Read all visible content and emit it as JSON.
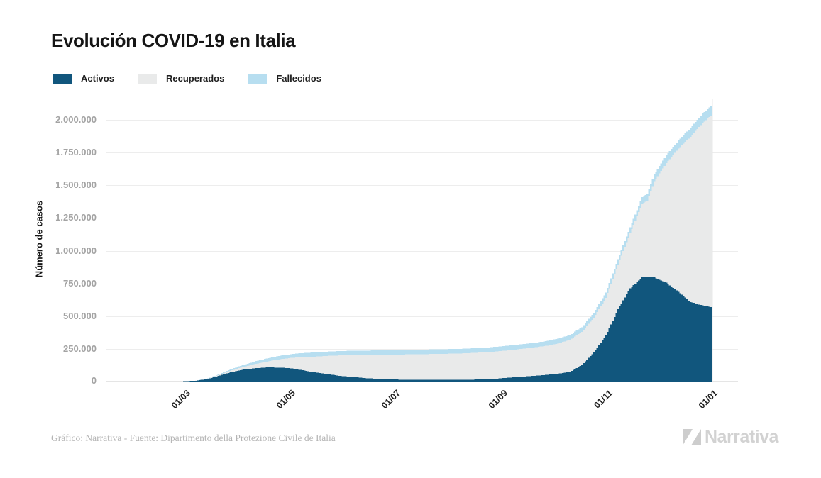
{
  "title": "Evolución COVID-19 en Italia",
  "legend": [
    {
      "id": "activos",
      "label": "Activos",
      "color": "#11567d"
    },
    {
      "id": "recuperados",
      "label": "Recuperados",
      "color": "#e9eaea"
    },
    {
      "id": "fallecidos",
      "label": "Fallecidos",
      "color": "#b7def0"
    }
  ],
  "y_axis": {
    "label": "Número de casos",
    "ticks": [
      {
        "label": "0",
        "value": 0
      },
      {
        "label": "250.000",
        "value": 250000
      },
      {
        "label": "500.000",
        "value": 500000
      },
      {
        "label": "750.000",
        "value": 750000
      },
      {
        "label": "1.000.000",
        "value": 1000000
      },
      {
        "label": "1.250.000",
        "value": 1250000
      },
      {
        "label": "1.500.000",
        "value": 1500000
      },
      {
        "label": "1.750.000",
        "value": 1750000
      },
      {
        "label": "2.000.000",
        "value": 2000000
      }
    ]
  },
  "x_axis": {
    "ticks": [
      {
        "label": "01/03",
        "date": "2020-03-01"
      },
      {
        "label": "01/05",
        "date": "2020-05-01"
      },
      {
        "label": "01/07",
        "date": "2020-07-01"
      },
      {
        "label": "01/09",
        "date": "2020-09-01"
      },
      {
        "label": "01/11",
        "date": "2020-11-01"
      },
      {
        "label": "01/01",
        "date": "2021-01-01"
      }
    ]
  },
  "footer": {
    "credit": "Gráfico: Narrativa - Fuente: Dipartimento della Protezione Civile de Italia",
    "brand": "Narrativa"
  },
  "chart_data": {
    "type": "area",
    "stacked": true,
    "title": "Evolución COVID-19 en Italia",
    "ylabel": "Número de casos",
    "ylim": [
      0,
      2150000
    ],
    "grid": "horizontal",
    "legend_position": "top-left",
    "series_order": [
      "activos",
      "recuperados",
      "fallecidos"
    ],
    "colors": {
      "activos": "#11567d",
      "recuperados": "#e9eaea",
      "fallecidos": "#b7def0"
    },
    "columns": [
      "date",
      "activos",
      "recuperados",
      "fallecidos"
    ],
    "points": [
      [
        "2020-02-15",
        3,
        0,
        0
      ],
      [
        "2020-02-24",
        222,
        1,
        7
      ],
      [
        "2020-03-01",
        1577,
        83,
        34
      ],
      [
        "2020-03-08",
        6387,
        622,
        366
      ],
      [
        "2020-03-15",
        20603,
        2335,
        1809
      ],
      [
        "2020-03-22",
        46638,
        7024,
        5476
      ],
      [
        "2020-03-29",
        73880,
        13030,
        10779
      ],
      [
        "2020-04-05",
        91246,
        21815,
        15887
      ],
      [
        "2020-04-12",
        102253,
        34211,
        19899
      ],
      [
        "2020-04-19",
        108257,
        47055,
        23660
      ],
      [
        "2020-04-26",
        106103,
        64928,
        26644
      ],
      [
        "2020-05-03",
        100179,
        81654,
        28884
      ],
      [
        "2020-05-10",
        83324,
        105186,
        30560
      ],
      [
        "2020-05-17",
        68351,
        122810,
        31908
      ],
      [
        "2020-05-24",
        56594,
        140479,
        32785
      ],
      [
        "2020-05-31",
        42075,
        157507,
        33415
      ],
      [
        "2020-06-07",
        35877,
        165837,
        33964
      ],
      [
        "2020-06-14",
        26274,
        174865,
        34301
      ],
      [
        "2020-06-21",
        21543,
        182453,
        34610
      ],
      [
        "2020-06-28",
        16496,
        188891,
        34738
      ],
      [
        "2020-07-05",
        14642,
        192108,
        34854
      ],
      [
        "2020-07-12",
        13428,
        194928,
        34954
      ],
      [
        "2020-07-19",
        12404,
        197162,
        35045
      ],
      [
        "2020-07-26",
        12565,
        198593,
        35107
      ],
      [
        "2020-08-02",
        12474,
        200460,
        35146
      ],
      [
        "2020-08-09",
        13368,
        202098,
        35203
      ],
      [
        "2020-08-16",
        14867,
        203968,
        35400
      ],
      [
        "2020-08-23",
        18438,
        205662,
        35430
      ],
      [
        "2020-08-30",
        23035,
        207653,
        35473
      ],
      [
        "2020-09-06",
        30099,
        209610,
        35541
      ],
      [
        "2020-09-13",
        37503,
        211885,
        35597
      ],
      [
        "2020-09-20",
        43161,
        216807,
        35707
      ],
      [
        "2020-09-27",
        50630,
        221762,
        35818
      ],
      [
        "2020-10-04",
        58903,
        231914,
        35941
      ],
      [
        "2020-10-11",
        74829,
        244065,
        36140
      ],
      [
        "2020-10-18",
        126237,
        252959,
        36543
      ],
      [
        "2020-10-25",
        222241,
        266203,
        37338
      ],
      [
        "2020-11-01",
        351386,
        289426,
        38618
      ],
      [
        "2020-11-08",
        551609,
        342101,
        41394
      ],
      [
        "2020-11-15",
        712490,
        420810,
        45229
      ],
      [
        "2020-11-22",
        796849,
        562148,
        49823
      ],
      [
        "2020-11-25",
        798386,
        584493,
        51306
      ],
      [
        "2020-11-29",
        795771,
        734503,
        54904
      ],
      [
        "2020-12-06",
        755306,
        913494,
        60078
      ],
      [
        "2020-12-13",
        686031,
        1093161,
        64520
      ],
      [
        "2020-12-20",
        608010,
        1261626,
        68447
      ],
      [
        "2020-12-27",
        581760,
        1394011,
        71925
      ],
      [
        "2021-01-01",
        569896,
        1463111,
        74159
      ]
    ]
  }
}
